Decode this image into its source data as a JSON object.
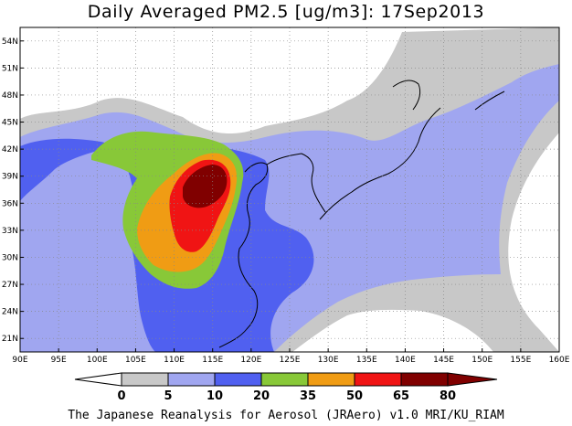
{
  "title": "Daily Averaged PM2.5 [ug/m3]: 17Sep2013",
  "credit": "The Japanese Reanalysis for Aerosol (JRAero) v1.0 MRI/KU_RIAM",
  "map": {
    "lon_range": [
      90,
      160
    ],
    "lat_range": [
      19.5,
      55.5
    ],
    "lon_ticks": [
      "90E",
      "95E",
      "100E",
      "105E",
      "110E",
      "115E",
      "120E",
      "125E",
      "130E",
      "135E",
      "140E",
      "145E",
      "150E",
      "155E",
      "160E"
    ],
    "lat_ticks": [
      "54N",
      "51N",
      "48N",
      "45N",
      "42N",
      "39N",
      "36N",
      "33N",
      "30N",
      "27N",
      "24N",
      "21N"
    ],
    "lon_tick_values": [
      90,
      95,
      100,
      105,
      110,
      115,
      120,
      125,
      130,
      135,
      140,
      145,
      150,
      155,
      160
    ],
    "lat_tick_values": [
      54,
      51,
      48,
      45,
      42,
      39,
      36,
      33,
      30,
      27,
      24,
      21
    ]
  },
  "colorbar": {
    "labels": [
      "0",
      "5",
      "10",
      "20",
      "35",
      "50",
      "65",
      "80"
    ],
    "colors": [
      "#ffffff",
      "#c8c8c8",
      "#a0a6f0",
      "#5060f0",
      "#88c838",
      "#f09c14",
      "#f01414",
      "#800000"
    ]
  }
}
